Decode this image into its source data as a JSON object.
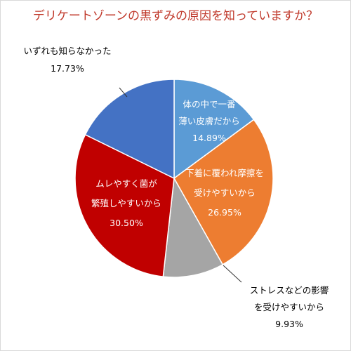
{
  "chart_data": {
    "type": "pie",
    "title": "デリケートゾーンの黒ずみの原因を知っていますか？",
    "start_angle_deg": 0,
    "direction": "clockwise",
    "slices": [
      {
        "label_lines": [
          "体の中で一番",
          "薄い皮膚だから"
        ],
        "value": 14.89,
        "value_text": "14.89%",
        "color": "#5b9bd5",
        "label_position": "inside"
      },
      {
        "label_lines": [
          "下着に覆われ摩擦を",
          "受けやすいから"
        ],
        "value": 26.95,
        "value_text": "26.95%",
        "color": "#ed7d31",
        "label_position": "inside"
      },
      {
        "label_lines": [
          "ストレスなどの影響",
          "を受けやすいから"
        ],
        "value": 9.93,
        "value_text": "9.93%",
        "color": "#a5a5a5",
        "label_position": "outside"
      },
      {
        "label_lines": [
          "ムレやすく菌が",
          "繁殖しやすいから"
        ],
        "value": 30.5,
        "value_text": "30.50%",
        "color": "#c00000",
        "label_position": "inside"
      },
      {
        "label_lines": [
          "いずれも知らなかった"
        ],
        "value": 17.73,
        "value_text": "17.73%",
        "color": "#4472c4",
        "label_position": "outside"
      }
    ]
  }
}
